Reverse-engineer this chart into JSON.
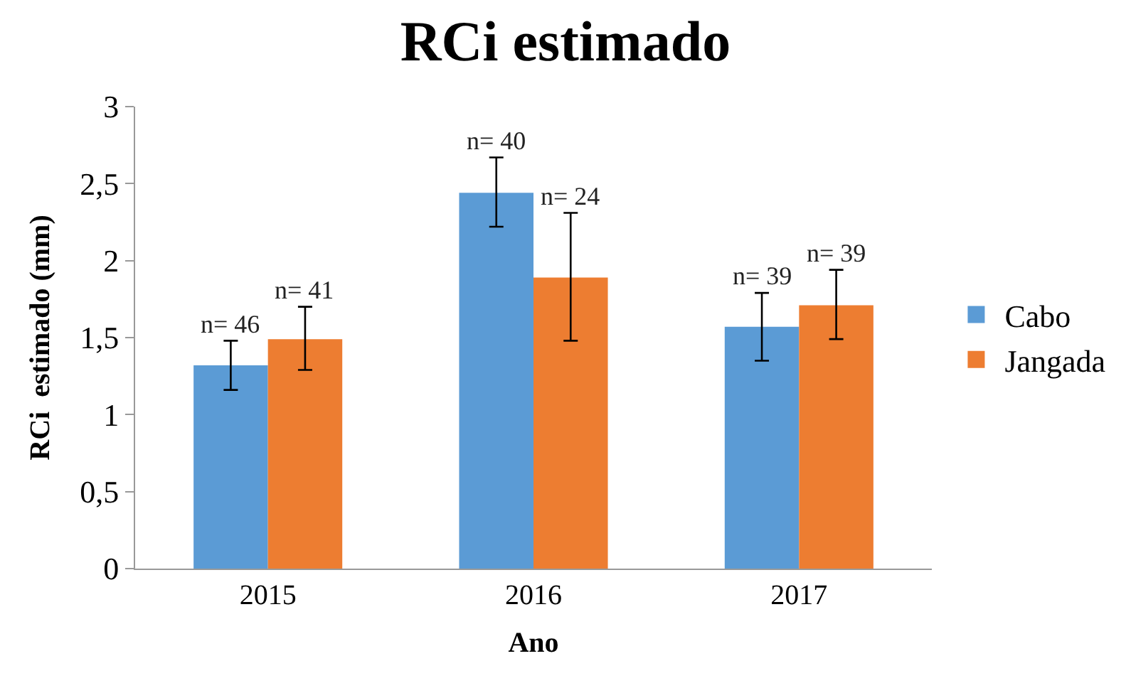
{
  "chart_data": {
    "type": "bar",
    "title": "RCi estimado",
    "xlabel": "Ano",
    "ylabel": "RCi  estimado (mm)",
    "categories": [
      "2015",
      "2016",
      "2017"
    ],
    "series": [
      {
        "name": "Cabo",
        "color": "#5b9bd5",
        "values": [
          1.32,
          2.44,
          1.57
        ],
        "errors": [
          [
            1.16,
            1.48
          ],
          [
            2.22,
            2.67
          ],
          [
            1.35,
            1.79
          ]
        ]
      },
      {
        "name": "Jangada",
        "color": "#ed7d31",
        "values": [
          1.49,
          1.89,
          1.71
        ],
        "errors": [
          [
            1.29,
            1.7
          ],
          [
            1.48,
            2.31
          ],
          [
            1.49,
            1.94
          ]
        ]
      }
    ],
    "annotations": [
      {
        "text": "n= 46",
        "x": "2015",
        "y": 1.32
      },
      {
        "text": "n= 41",
        "x": "2015",
        "y": 1.49
      },
      {
        "text": "n= 40",
        "x": "2016",
        "y": 2.44
      },
      {
        "text": "n= 24",
        "x": "2016",
        "y": 1.89
      },
      {
        "text": "n= 39",
        "x": "2017",
        "y": 1.57
      },
      {
        "text": "n= 39",
        "x": "2017",
        "y": 1.71
      }
    ],
    "ylim": [
      0,
      3
    ],
    "yticks": [
      0,
      {
        "value": 0.5,
        "label": "0,5"
      },
      1,
      {
        "value": 1.5,
        "label": "1,5"
      },
      2,
      {
        "value": 2.5,
        "label": "2,5"
      },
      3
    ],
    "legend": "right"
  }
}
